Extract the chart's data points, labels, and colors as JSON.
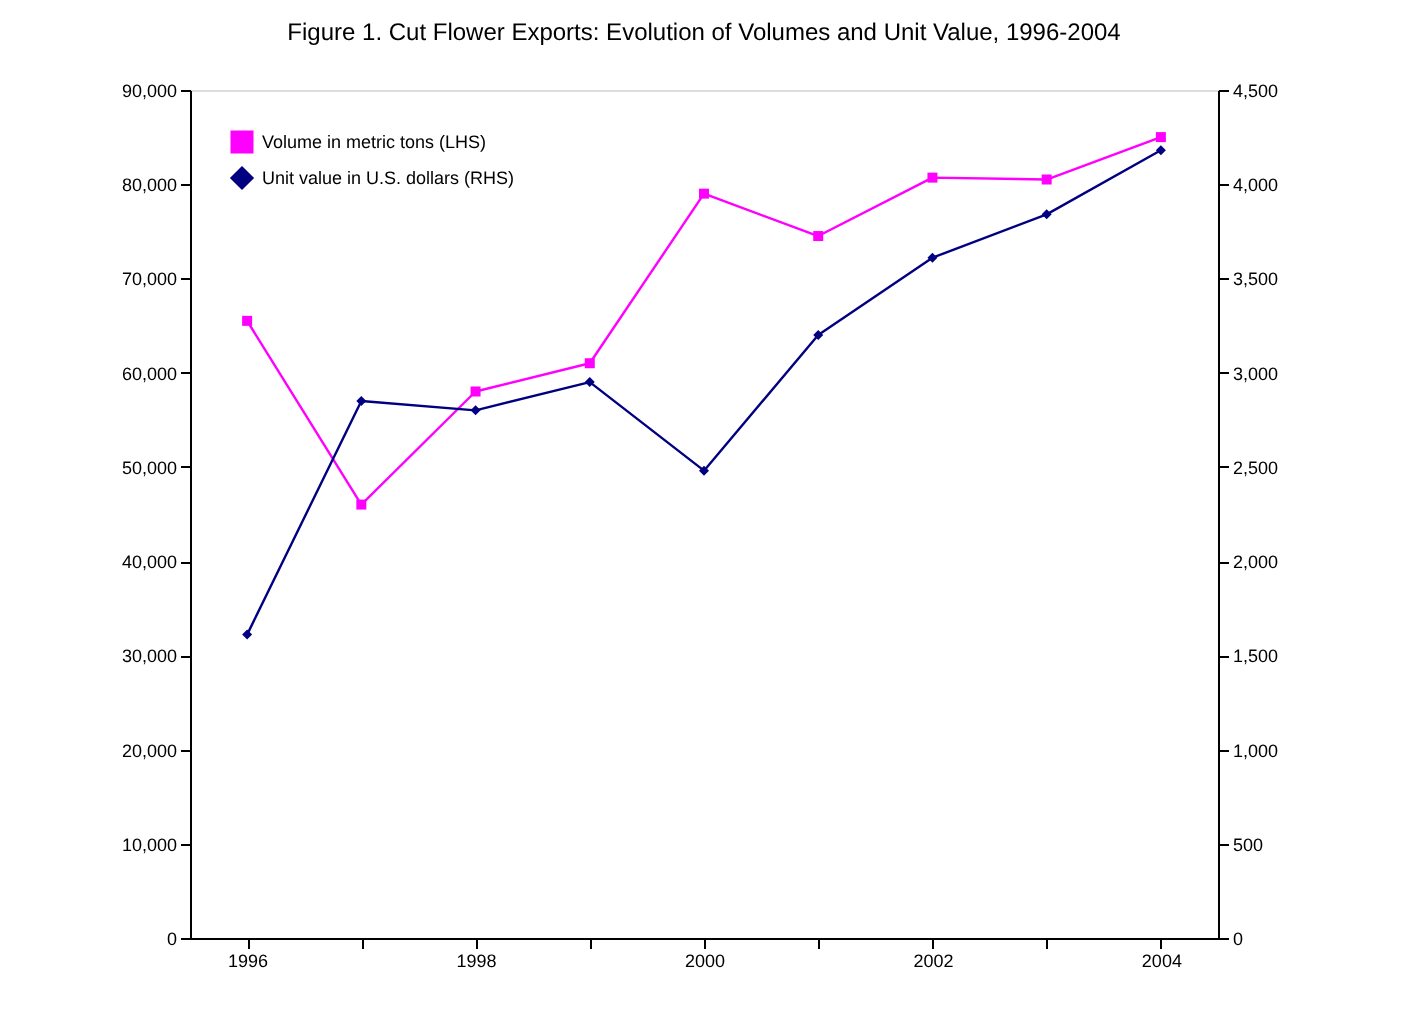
{
  "chart_data": {
    "type": "line",
    "title": "Figure 1. Cut Flower Exports: Evolution of Volumes and Unit Value, 1996-2004",
    "categories": [
      "1996",
      null,
      "1998",
      null,
      "2000",
      null,
      "2002",
      null,
      "2004"
    ],
    "series": [
      {
        "name": "Volume in metric tons (LHS)",
        "color": "#ff00ff",
        "marker": "square",
        "axis": "y",
        "values": [
          65500,
          46000,
          58000,
          61000,
          79000,
          74500,
          80700,
          80500,
          85000
        ]
      },
      {
        "name": "Unit value in U.S. dollars (RHS)",
        "color": "#000080",
        "marker": "diamond",
        "axis": "y2",
        "values": [
          1610,
          2850,
          2800,
          2950,
          2480,
          3200,
          3610,
          3840,
          4180
        ]
      }
    ],
    "ylim": [
      0,
      90000
    ],
    "yticks": [
      0,
      {
        "value": 10000,
        "label": "10,000"
      },
      {
        "value": 20000,
        "label": "20,000"
      },
      {
        "value": 30000,
        "label": "30,000"
      },
      {
        "value": 40000,
        "label": "40,000"
      },
      {
        "value": 50000,
        "label": "50,000"
      },
      {
        "value": 60000,
        "label": "60,000"
      },
      {
        "value": 70000,
        "label": "70,000"
      },
      {
        "value": 80000,
        "label": "80,000"
      },
      {
        "value": 90000,
        "label": "90,000"
      }
    ],
    "y2lim": [
      0,
      4500
    ],
    "y2ticks": [
      0,
      500,
      {
        "value": 1000,
        "label": "1,000"
      },
      {
        "value": 1500,
        "label": "1,500"
      },
      {
        "value": 2000,
        "label": "2,000"
      },
      {
        "value": 2500,
        "label": "2,500"
      },
      {
        "value": 3000,
        "label": "3,000"
      },
      {
        "value": 3500,
        "label": "3,500"
      },
      {
        "value": 4000,
        "label": "4,000"
      },
      {
        "value": 4500,
        "label": "4,500"
      }
    ],
    "legend": "top left",
    "grid": false
  }
}
